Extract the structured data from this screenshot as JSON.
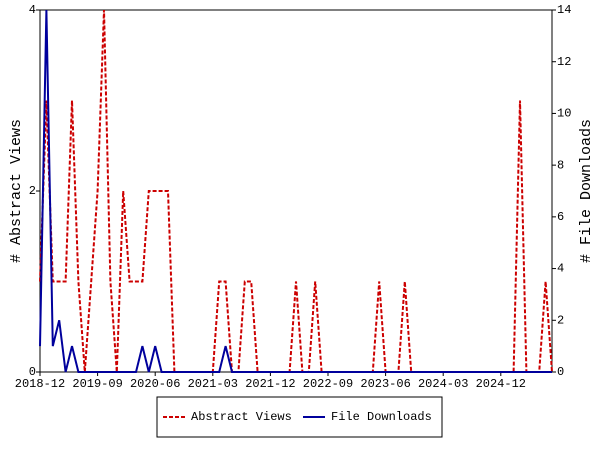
{
  "chart_data": {
    "type": "line",
    "categories": [
      "2018-12",
      null,
      null,
      null,
      null,
      null,
      null,
      null,
      null,
      "2019-09",
      null,
      null,
      null,
      null,
      null,
      null,
      null,
      null,
      "2020-06",
      null,
      null,
      null,
      null,
      null,
      null,
      null,
      null,
      "2021-03",
      null,
      null,
      null,
      null,
      null,
      null,
      null,
      null,
      "2021-12",
      null,
      null,
      null,
      null,
      null,
      null,
      null,
      null,
      "2022-09",
      null,
      null,
      null,
      null,
      null,
      null,
      null,
      null,
      "2023-06",
      null,
      null,
      null,
      null,
      null,
      null,
      null,
      null,
      "2024-03",
      null,
      null,
      null,
      null,
      null,
      null,
      null,
      null,
      "2024-12",
      null,
      null,
      null,
      null,
      null,
      null,
      null,
      null
    ],
    "series": [
      {
        "name": "Abstract Views",
        "color": "#cc0000",
        "dash": true,
        "values": [
          1,
          3,
          1,
          1,
          1,
          3,
          1,
          0,
          1,
          2,
          4,
          1,
          0,
          2,
          1,
          1,
          1,
          2,
          2,
          2,
          2,
          0,
          0,
          0,
          0,
          0,
          0,
          0,
          1,
          1,
          0,
          0,
          1,
          1,
          0,
          0,
          0,
          0,
          0,
          0,
          1,
          0,
          0,
          1,
          0,
          0,
          0,
          0,
          0,
          0,
          0,
          0,
          0,
          1,
          0,
          0,
          0,
          1,
          0,
          0,
          0,
          0,
          0,
          0,
          0,
          0,
          0,
          0,
          0,
          0,
          0,
          0,
          0,
          0,
          0,
          3,
          0,
          0,
          0,
          1,
          0
        ]
      },
      {
        "name": "File Downloads",
        "color": "#00009c",
        "axis": "y2",
        "values": [
          1,
          14,
          1,
          2,
          0,
          1,
          0,
          0,
          0,
          0,
          0,
          0,
          0,
          0,
          0,
          0,
          1,
          0,
          1,
          0,
          0,
          0,
          0,
          0,
          0,
          0,
          0,
          0,
          0,
          1,
          0,
          0,
          0,
          0,
          0,
          0,
          0,
          0,
          0,
          0,
          0,
          0,
          0,
          0,
          0,
          0,
          0,
          0,
          0,
          0,
          0,
          0,
          0,
          0,
          0,
          0,
          0,
          0,
          0,
          0,
          0,
          0,
          0,
          0,
          0,
          0,
          0,
          0,
          0,
          0,
          0,
          0,
          0,
          0,
          0,
          0,
          0,
          0,
          0,
          0,
          0
        ]
      }
    ],
    "ylabel": "# Abstract Views",
    "y2label": "# File Downloads",
    "ylim": [
      0,
      4
    ],
    "yticks": [
      0,
      2,
      4
    ],
    "y2lim": [
      0,
      14
    ],
    "y2ticks": [
      0,
      2,
      4,
      6,
      8,
      10,
      12,
      14
    ],
    "grid": false,
    "legend": "bottom"
  }
}
